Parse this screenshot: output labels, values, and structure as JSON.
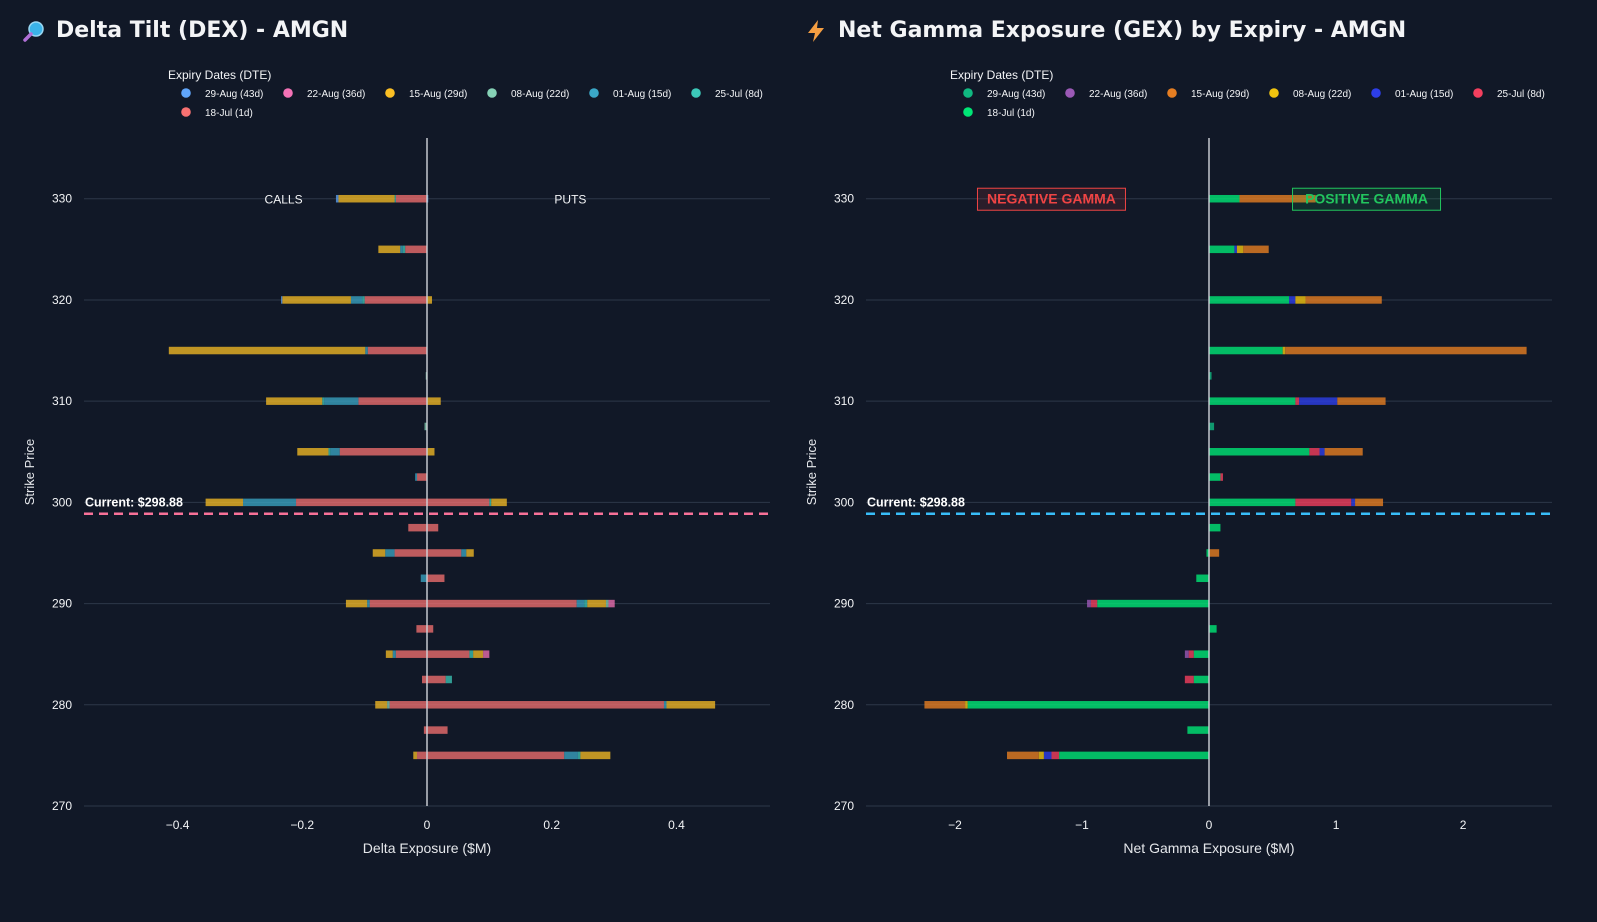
{
  "panels": {
    "dex": {
      "title": "Delta Tilt (DEX) - AMGN",
      "icon": "magnifier-icon"
    },
    "gex": {
      "title": "Net Gamma Exposure (GEX) by Expiry - AMGN",
      "icon": "lightning-icon"
    }
  },
  "chart_data": [
    {
      "type": "bar",
      "orientation": "horizontal",
      "stacked": true,
      "title": "Delta Tilt (DEX) - AMGN",
      "xlabel": "Delta Exposure ($M)",
      "ylabel": "Strike Price",
      "xlim": [
        -0.55,
        0.55
      ],
      "ylim": [
        270,
        336
      ],
      "xticks": [
        -0.4,
        -0.2,
        0,
        0.2,
        0.4
      ],
      "xtick_labels": [
        "−0.4",
        "−0.2",
        "0",
        "0.2",
        "0.4"
      ],
      "yticks": [
        270,
        280,
        290,
        300,
        310,
        320,
        330
      ],
      "grid": true,
      "legend": {
        "title": "Expiry Dates (DTE)",
        "position": "top"
      },
      "series_colors": [
        "#60a5fa",
        "#f472b6",
        "#fbbf24",
        "#86d2b6",
        "#3ba8c8",
        "#3cc8b9",
        "#f87171"
      ],
      "series_names": [
        "29-Aug (43d)",
        "22-Aug (36d)",
        "15-Aug (29d)",
        "08-Aug (22d)",
        "01-Aug (15d)",
        "25-Jul (8d)",
        "18-Jul (1d)"
      ],
      "bar_opacity": 0.75,
      "strikes": [
        330,
        325,
        320,
        315,
        312.5,
        310,
        307.5,
        305,
        302.5,
        300,
        297.5,
        295,
        292.5,
        290,
        287.5,
        285,
        282.5,
        280,
        277.5,
        275
      ],
      "segments": [
        [
          [
            1,
            -0.05,
            "#f87171"
          ],
          [
            1,
            0.002,
            "#60a5fa"
          ],
          [
            1,
            -0.002,
            "#3cc8b9"
          ],
          [
            1,
            -0.09,
            "#fbbf24"
          ],
          [
            1,
            -0.004,
            "#60a5fa"
          ]
        ],
        [
          [
            1,
            -0.035,
            "#f87171"
          ],
          [
            1,
            -0.004,
            "#3cc8b9"
          ],
          [
            1,
            -0.004,
            "#3ba8c8"
          ],
          [
            1,
            -0.035,
            "#fbbf24"
          ]
        ],
        [
          [
            1,
            0.008,
            "#fbbf24"
          ],
          [
            1,
            -0.1,
            "#f87171"
          ],
          [
            1,
            -0.004,
            "#3cc8b9"
          ],
          [
            1,
            -0.018,
            "#3ba8c8"
          ],
          [
            1,
            -0.11,
            "#fbbf24"
          ],
          [
            1,
            -0.002,
            "#60a5fa"
          ]
        ],
        [
          [
            1,
            -0.095,
            "#f87171"
          ],
          [
            1,
            -0.004,
            "#3ba8c8"
          ],
          [
            1,
            -0.315,
            "#fbbf24"
          ]
        ],
        [
          [
            1,
            -0.002,
            "#86d2b6"
          ]
        ],
        [
          [
            1,
            0.022,
            "#fbbf24"
          ],
          [
            1,
            -0.11,
            "#f87171"
          ],
          [
            1,
            -0.055,
            "#3ba8c8"
          ],
          [
            1,
            -0.003,
            "#3cc8b9"
          ],
          [
            1,
            -0.09,
            "#fbbf24"
          ]
        ],
        [
          [
            1,
            -0.004,
            "#86d2b6"
          ]
        ],
        [
          [
            1,
            0.012,
            "#fbbf24"
          ],
          [
            1,
            -0.14,
            "#f87171"
          ],
          [
            1,
            -0.015,
            "#3ba8c8"
          ],
          [
            1,
            -0.003,
            "#3cc8b9"
          ],
          [
            1,
            -0.05,
            "#fbbf24"
          ]
        ],
        [
          [
            1,
            -0.016,
            "#f87171"
          ],
          [
            1,
            -0.003,
            "#3ba8c8"
          ]
        ],
        [
          [
            1,
            0.1,
            "#f87171"
          ],
          [
            1,
            0.003,
            "#3cc8b9"
          ],
          [
            1,
            0.025,
            "#fbbf24"
          ],
          [
            1,
            -0.21,
            "#f87171"
          ],
          [
            1,
            -0.085,
            "#3ba8c8"
          ],
          [
            1,
            -0.06,
            "#fbbf24"
          ]
        ],
        [
          [
            1,
            0.018,
            "#f87171"
          ],
          [
            1,
            -0.03,
            "#f87171"
          ]
        ],
        [
          [
            1,
            0.055,
            "#f87171"
          ],
          [
            1,
            0.008,
            "#3ba8c8"
          ],
          [
            1,
            0.012,
            "#fbbf24"
          ],
          [
            1,
            -0.052,
            "#f87171"
          ],
          [
            1,
            -0.015,
            "#3ba8c8"
          ],
          [
            1,
            -0.02,
            "#fbbf24"
          ]
        ],
        [
          [
            1,
            0.028,
            "#f87171"
          ],
          [
            1,
            -0.01,
            "#3ba8c8"
          ]
        ],
        [
          [
            1,
            0.24,
            "#f87171"
          ],
          [
            1,
            0.012,
            "#3ba8c8"
          ],
          [
            1,
            0.005,
            "#3cc8b9"
          ],
          [
            1,
            0.03,
            "#fbbf24"
          ],
          [
            1,
            0.004,
            "#86d2b6"
          ],
          [
            1,
            0.01,
            "#f472b6"
          ],
          [
            1,
            -0.092,
            "#f87171"
          ],
          [
            1,
            -0.004,
            "#3ba8c8"
          ],
          [
            1,
            -0.034,
            "#fbbf24"
          ]
        ],
        [
          [
            1,
            0.01,
            "#f87171"
          ],
          [
            1,
            -0.017,
            "#f87171"
          ]
        ],
        [
          [
            1,
            0.068,
            "#f87171"
          ],
          [
            1,
            0.006,
            "#3cc8b9"
          ],
          [
            1,
            0.016,
            "#fbbf24"
          ],
          [
            1,
            0.01,
            "#f472b6"
          ],
          [
            1,
            -0.05,
            "#f87171"
          ],
          [
            1,
            -0.005,
            "#3ba8c8"
          ],
          [
            1,
            -0.011,
            "#fbbf24"
          ]
        ],
        [
          [
            1,
            0.03,
            "#f87171"
          ],
          [
            1,
            0.01,
            "#3cc8b9"
          ],
          [
            1,
            -0.008,
            "#f87171"
          ]
        ],
        [
          [
            1,
            0.38,
            "#f87171"
          ],
          [
            1,
            0.004,
            "#3ba8c8"
          ],
          [
            1,
            0.078,
            "#fbbf24"
          ],
          [
            1,
            -0.06,
            "#f87171"
          ],
          [
            1,
            -0.004,
            "#86d2b6"
          ],
          [
            1,
            -0.019,
            "#fbbf24"
          ]
        ],
        [
          [
            1,
            0.033,
            "#f87171"
          ],
          [
            1,
            -0.005,
            "#f87171"
          ]
        ],
        [
          [
            1,
            0.22,
            "#f87171"
          ],
          [
            1,
            0.022,
            "#3ba8c8"
          ],
          [
            1,
            0.004,
            "#3cc8b9"
          ],
          [
            1,
            0.048,
            "#fbbf24"
          ],
          [
            1,
            -0.016,
            "#f87171"
          ],
          [
            1,
            -0.006,
            "#fbbf24"
          ]
        ]
      ],
      "annotations": [
        {
          "text": "CALLS",
          "x": -0.23,
          "y": 330
        },
        {
          "text": "PUTS",
          "x": 0.23,
          "y": 330
        }
      ],
      "reference_line": {
        "y": 298.88,
        "label": "Current: $298.88",
        "color": "#f87198"
      }
    },
    {
      "type": "bar",
      "orientation": "horizontal",
      "stacked": true,
      "title": "Net Gamma Exposure (GEX) by Expiry - AMGN",
      "xlabel": "Net Gamma Exposure ($M)",
      "ylabel": "Strike Price",
      "xlim": [
        -2.7,
        2.7
      ],
      "ylim": [
        270,
        336
      ],
      "xticks": [
        -2,
        -1,
        0,
        1,
        2
      ],
      "xtick_labels": [
        "−2",
        "−1",
        "0",
        "1",
        "2"
      ],
      "yticks": [
        270,
        280,
        290,
        300,
        310,
        320,
        330
      ],
      "grid": true,
      "legend": {
        "title": "Expiry Dates (DTE)",
        "position": "top"
      },
      "series_colors": [
        "#10b981",
        "#9b59b6",
        "#e67e22",
        "#f1c40f",
        "#2d3ee8",
        "#f43f5e",
        "#00e676"
      ],
      "series_names": [
        "29-Aug (43d)",
        "22-Aug (36d)",
        "15-Aug (29d)",
        "08-Aug (22d)",
        "01-Aug (15d)",
        "25-Jul (8d)",
        "18-Jul (1d)"
      ],
      "bar_opacity": 0.8,
      "strikes": [
        330,
        325,
        320,
        315,
        312.5,
        310,
        307.5,
        305,
        302.5,
        300,
        297.5,
        295,
        292.5,
        290,
        287.5,
        285,
        282.5,
        280,
        277.5,
        275
      ],
      "segments": [
        [
          [
            1,
            0.24,
            "#00e676"
          ],
          [
            1,
            0.6,
            "#e67e22"
          ]
        ],
        [
          [
            1,
            0.2,
            "#00e676"
          ],
          [
            1,
            0.02,
            "#2d3ee8"
          ],
          [
            1,
            0.05,
            "#f1c40f"
          ],
          [
            1,
            0.2,
            "#e67e22"
          ]
        ],
        [
          [
            1,
            0.63,
            "#00e676"
          ],
          [
            1,
            0.05,
            "#2d3ee8"
          ],
          [
            1,
            0.08,
            "#f1c40f"
          ],
          [
            1,
            0.6,
            "#e67e22"
          ]
        ],
        [
          [
            1,
            0.58,
            "#00e676"
          ],
          [
            1,
            0.02,
            "#f1c40f"
          ],
          [
            1,
            1.9,
            "#e67e22"
          ]
        ],
        [
          [
            1,
            0.02,
            "#10b981"
          ]
        ],
        [
          [
            1,
            0.68,
            "#00e676"
          ],
          [
            1,
            0.03,
            "#f43f5e"
          ],
          [
            1,
            0.3,
            "#2d3ee8"
          ],
          [
            1,
            0.38,
            "#e67e22"
          ]
        ],
        [
          [
            1,
            0.04,
            "#10b981"
          ]
        ],
        [
          [
            1,
            0.79,
            "#00e676"
          ],
          [
            1,
            0.08,
            "#f43f5e"
          ],
          [
            1,
            0.04,
            "#2d3ee8"
          ],
          [
            1,
            0.3,
            "#e67e22"
          ]
        ],
        [
          [
            1,
            0.09,
            "#00e676"
          ],
          [
            1,
            0.02,
            "#f43f5e"
          ]
        ],
        [
          [
            1,
            0.68,
            "#00e676"
          ],
          [
            1,
            0.44,
            "#f43f5e"
          ],
          [
            1,
            0.03,
            "#2d3ee8"
          ],
          [
            1,
            0.22,
            "#e67e22"
          ]
        ],
        [
          [
            1,
            0.09,
            "#00e676"
          ]
        ],
        [
          [
            1,
            -0.02,
            "#00e676"
          ],
          [
            1,
            0.08,
            "#e67e22"
          ]
        ],
        [
          [
            1,
            -0.1,
            "#00e676"
          ]
        ],
        [
          [
            1,
            -0.88,
            "#00e676"
          ],
          [
            1,
            -0.05,
            "#f43f5e"
          ],
          [
            1,
            -0.03,
            "#9b59b6"
          ]
        ],
        [
          [
            1,
            0.06,
            "#00e676"
          ]
        ],
        [
          [
            1,
            -0.12,
            "#00e676"
          ],
          [
            1,
            -0.04,
            "#f43f5e"
          ],
          [
            1,
            -0.03,
            "#9b59b6"
          ]
        ],
        [
          [
            1,
            -0.12,
            "#00e676"
          ],
          [
            1,
            -0.07,
            "#f43f5e"
          ]
        ],
        [
          [
            1,
            -1.9,
            "#00e676"
          ],
          [
            1,
            -0.02,
            "#f1c40f"
          ],
          [
            1,
            -0.32,
            "#e67e22"
          ]
        ],
        [
          [
            1,
            -0.17,
            "#00e676"
          ]
        ],
        [
          [
            1,
            -1.18,
            "#00e676"
          ],
          [
            1,
            -0.06,
            "#f43f5e"
          ],
          [
            1,
            -0.06,
            "#2d3ee8"
          ],
          [
            1,
            -0.04,
            "#f1c40f"
          ],
          [
            1,
            -0.25,
            "#e67e22"
          ]
        ]
      ],
      "annotations": [
        {
          "text": "NEGATIVE GAMMA",
          "x": -1.24,
          "y": 330,
          "color": "#ef4444",
          "boxed": true
        },
        {
          "text": "POSITIVE GAMMA",
          "x": 1.24,
          "y": 330,
          "color": "#22c55e",
          "boxed": true
        }
      ],
      "reference_line": {
        "y": 298.88,
        "label": "Current: $298.88",
        "color": "#38bdf8"
      }
    }
  ]
}
